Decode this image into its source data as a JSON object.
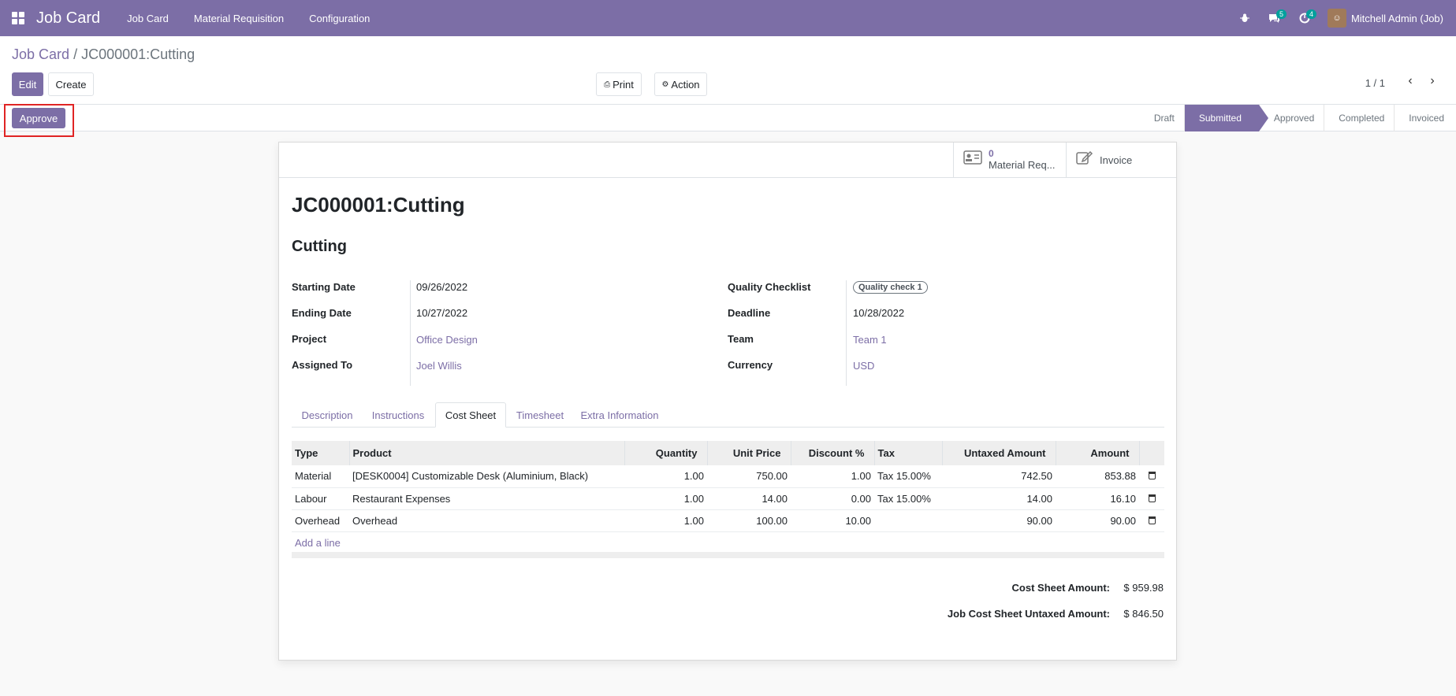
{
  "navbar": {
    "app_title": "Job Card",
    "menu": [
      "Job Card",
      "Material Requisition",
      "Configuration"
    ],
    "messages_count": "5",
    "activities_count": "4",
    "user_name": "Mitchell Admin (Job)"
  },
  "breadcrumb": {
    "parent": "Job Card",
    "separator": "/",
    "current": "JC000001:Cutting"
  },
  "toolbar": {
    "edit_label": "Edit",
    "create_label": "Create",
    "print_label": "Print",
    "action_label": "Action",
    "pager": "1 / 1"
  },
  "statusbar": {
    "approve_label": "Approve",
    "stages": [
      "Draft",
      "Submitted",
      "Approved",
      "Completed",
      "Invoiced"
    ],
    "current_stage": "Submitted"
  },
  "smart_buttons": {
    "material_count": "0",
    "material_label": "Material Req...",
    "invoice_label": "Invoice"
  },
  "form": {
    "title": "JC000001:Cutting",
    "subtitle": "Cutting",
    "left_fields": [
      {
        "label": "Starting Date",
        "value": "09/26/2022"
      },
      {
        "label": "Ending Date",
        "value": "10/27/2022"
      },
      {
        "label": "Project",
        "value": "Office Design"
      },
      {
        "label": "Assigned To",
        "value": "Joel Willis"
      }
    ],
    "right_fields": [
      {
        "label": "Quality Checklist",
        "value": "Quality check 1"
      },
      {
        "label": "Deadline",
        "value": "10/28/2022"
      },
      {
        "label": "Team",
        "value": "Team 1"
      },
      {
        "label": "Currency",
        "value": "USD"
      }
    ]
  },
  "tabs": [
    "Description",
    "Instructions",
    "Cost Sheet",
    "Timesheet",
    "Extra Information"
  ],
  "cost_sheet": {
    "headers": [
      "Type",
      "Product",
      "Quantity",
      "Unit Price",
      "Discount %",
      "Tax",
      "Untaxed Amount",
      "Amount"
    ],
    "rows": [
      {
        "type": "Material",
        "product": "[DESK0004] Customizable Desk (Aluminium, Black)",
        "quantity": "1.00",
        "unit_price": "750.00",
        "discount": "1.00",
        "tax": "Tax 15.00%",
        "untaxed": "742.50",
        "amount": "853.88"
      },
      {
        "type": "Labour",
        "product": "Restaurant Expenses",
        "quantity": "1.00",
        "unit_price": "14.00",
        "discount": "0.00",
        "tax": "Tax 15.00%",
        "untaxed": "14.00",
        "amount": "16.10"
      },
      {
        "type": "Overhead",
        "product": "Overhead",
        "quantity": "1.00",
        "unit_price": "100.00",
        "discount": "10.00",
        "tax": "",
        "untaxed": "90.00",
        "amount": "90.00"
      }
    ],
    "add_line": "Add a line"
  },
  "totals": {
    "cost_sheet_label": "Cost Sheet Amount:",
    "cost_sheet_value": "$ 959.98",
    "untaxed_label": "Job Cost Sheet Untaxed Amount:",
    "untaxed_value": "$ 846.50"
  },
  "colors": {
    "brand": "#7c6ea6",
    "highlight": "#e02424"
  }
}
